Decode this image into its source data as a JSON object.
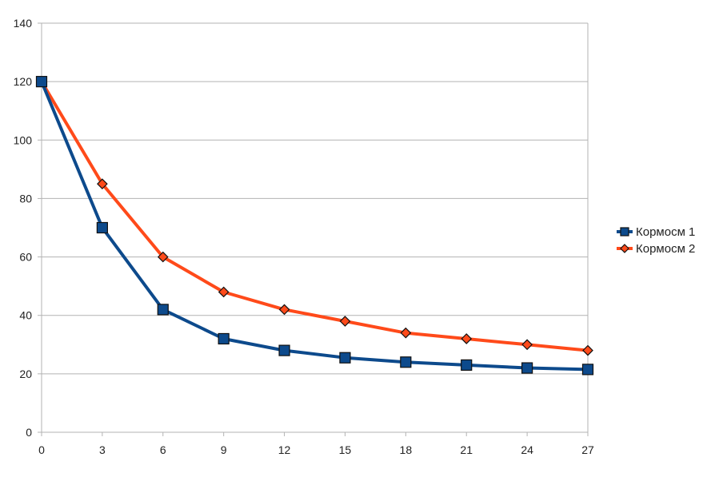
{
  "chart_data": {
    "type": "line",
    "x": [
      0,
      3,
      6,
      9,
      12,
      15,
      18,
      21,
      24,
      27
    ],
    "series": [
      {
        "name": "Кормосм 1",
        "color": "#0d4a8c",
        "marker": "square",
        "values": [
          120,
          70,
          42,
          32,
          28,
          25.5,
          24,
          23,
          22,
          21.5
        ]
      },
      {
        "name": "Кормосм 2",
        "color": "#ff4a1a",
        "marker": "diamond",
        "values": [
          120,
          85,
          60,
          48,
          42,
          38,
          34,
          32,
          30,
          28
        ]
      }
    ],
    "xticks": [
      "0",
      "3",
      "6",
      "9",
      "12",
      "15",
      "18",
      "21",
      "24",
      "27"
    ],
    "yticks": [
      "0",
      "20",
      "40",
      "60",
      "80",
      "100",
      "120",
      "140"
    ],
    "ylim": [
      0,
      140
    ],
    "xlim": [
      0,
      27
    ],
    "grid": true,
    "legend_position": "right",
    "title": "",
    "xlabel": "",
    "ylabel": ""
  }
}
